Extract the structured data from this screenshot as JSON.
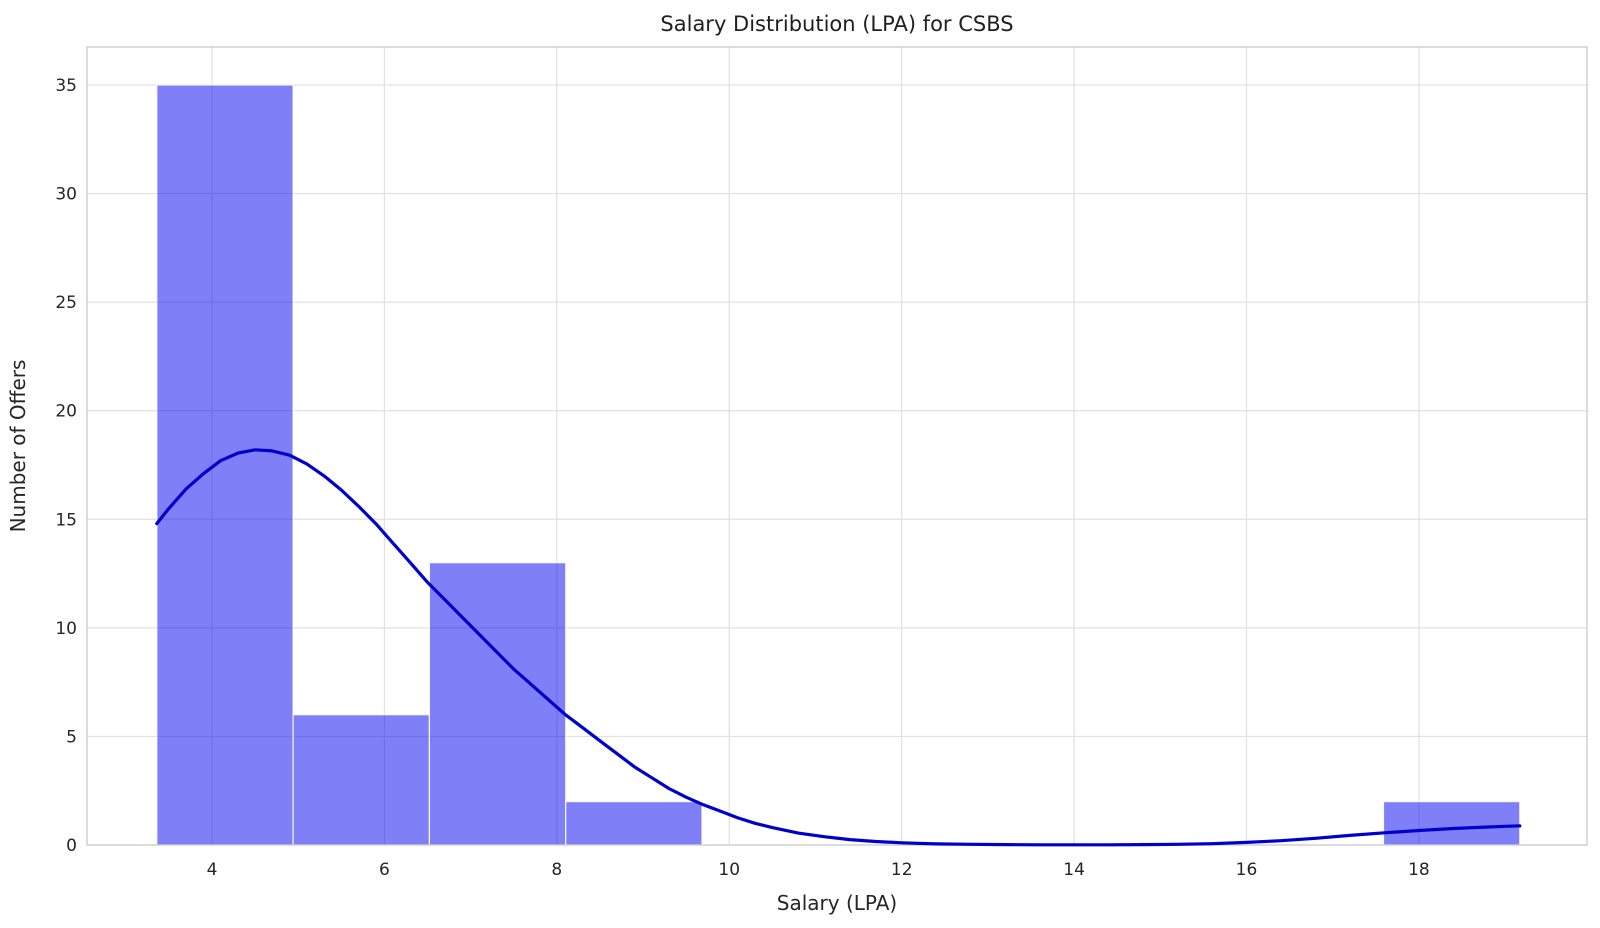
{
  "chart_data": {
    "type": "histogram",
    "title": "Salary Distribution (LPA) for CSBS",
    "xlabel": "Salary (LPA)",
    "ylabel": "Number of Offers",
    "grid": true,
    "legend": false,
    "xlim": [
      2.55,
      19.95
    ],
    "ylim": [
      0,
      36.75
    ],
    "xticks": [
      4,
      6,
      8,
      10,
      12,
      14,
      16,
      18
    ],
    "yticks": [
      0,
      5,
      10,
      15,
      20,
      25,
      30,
      35
    ],
    "bins": {
      "edges": [
        3.36,
        4.941,
        6.522,
        8.103,
        9.684,
        11.265,
        12.846,
        14.427,
        16.008,
        17.589,
        19.17
      ],
      "counts": [
        35,
        6,
        13,
        2,
        0,
        0,
        0,
        0,
        0,
        2
      ]
    },
    "kde_overlay": {
      "points": [
        [
          3.36,
          14.8
        ],
        [
          3.5,
          15.5
        ],
        [
          3.7,
          16.4
        ],
        [
          3.9,
          17.1
        ],
        [
          4.1,
          17.7
        ],
        [
          4.3,
          18.05
        ],
        [
          4.5,
          18.2
        ],
        [
          4.7,
          18.15
        ],
        [
          4.9,
          17.95
        ],
        [
          5.1,
          17.55
        ],
        [
          5.3,
          17.0
        ],
        [
          5.5,
          16.35
        ],
        [
          5.7,
          15.6
        ],
        [
          5.9,
          14.8
        ],
        [
          6.1,
          13.9
        ],
        [
          6.3,
          13.0
        ],
        [
          6.5,
          12.1
        ],
        [
          6.7,
          11.3
        ],
        [
          6.9,
          10.5
        ],
        [
          7.1,
          9.7
        ],
        [
          7.3,
          8.9
        ],
        [
          7.5,
          8.1
        ],
        [
          7.7,
          7.4
        ],
        [
          7.9,
          6.7
        ],
        [
          8.1,
          6.0
        ],
        [
          8.3,
          5.4
        ],
        [
          8.5,
          4.8
        ],
        [
          8.7,
          4.2
        ],
        [
          8.9,
          3.6
        ],
        [
          9.1,
          3.1
        ],
        [
          9.3,
          2.6
        ],
        [
          9.5,
          2.2
        ],
        [
          9.7,
          1.85
        ],
        [
          9.9,
          1.55
        ],
        [
          10.1,
          1.25
        ],
        [
          10.3,
          1.0
        ],
        [
          10.5,
          0.8
        ],
        [
          10.8,
          0.55
        ],
        [
          11.1,
          0.38
        ],
        [
          11.4,
          0.25
        ],
        [
          11.7,
          0.16
        ],
        [
          12.0,
          0.1
        ],
        [
          12.4,
          0.05
        ],
        [
          12.8,
          0.03
        ],
        [
          13.2,
          0.02
        ],
        [
          13.6,
          0.01
        ],
        [
          14.0,
          0.01
        ],
        [
          14.4,
          0.01
        ],
        [
          14.8,
          0.02
        ],
        [
          15.2,
          0.03
        ],
        [
          15.6,
          0.06
        ],
        [
          16.0,
          0.12
        ],
        [
          16.4,
          0.2
        ],
        [
          16.8,
          0.31
        ],
        [
          17.2,
          0.44
        ],
        [
          17.6,
          0.56
        ],
        [
          18.0,
          0.67
        ],
        [
          18.4,
          0.76
        ],
        [
          18.8,
          0.83
        ],
        [
          19.0,
          0.86
        ],
        [
          19.17,
          0.88
        ]
      ]
    },
    "colors": {
      "bar_fill": "#0000f0",
      "bar_fill_alpha": 0.5,
      "bar_edge": "#ffffff",
      "kde_line": "#0000cd",
      "grid_line": "#e0e0e0",
      "spine": "#c9c9c9",
      "text": "#262626",
      "background": "#ffffff"
    }
  }
}
